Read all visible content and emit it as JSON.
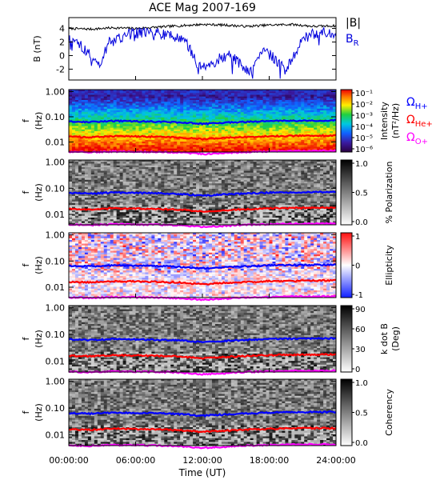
{
  "title": "ACE Mag 2007-169",
  "time_axis": {
    "label": "Time (UT)",
    "ticks": [
      "00:00:00",
      "06:00:00",
      "12:00:00",
      "18:00:00",
      "24:00:00"
    ]
  },
  "chart_data": [
    {
      "type": "line",
      "ylabel": "B (nT)",
      "ylim": [
        -3.6,
        5.6
      ],
      "yticks": [
        "4",
        "2",
        "0",
        "-2"
      ],
      "legend_placement": "right",
      "series": [
        {
          "name": "|B|",
          "color": "#000000",
          "x_hours": [
            0,
            2,
            4,
            6,
            8,
            10,
            12,
            14,
            16,
            18,
            20,
            22,
            24
          ],
          "values": [
            4.0,
            3.9,
            4.1,
            4.0,
            4.2,
            4.4,
            4.6,
            4.5,
            4.3,
            4.5,
            4.6,
            4.3,
            4.4
          ]
        },
        {
          "name": "B",
          "name_subscript": "R",
          "color": "#0000dd",
          "x_hours": [
            0,
            1,
            2,
            2.8,
            3.5,
            5,
            7,
            9,
            10.5,
            11.5,
            12.5,
            13.5,
            14.5,
            15.5,
            16.5,
            17.5,
            18.5,
            19.5,
            21,
            22.5,
            24
          ],
          "values": [
            2.5,
            1.5,
            0.2,
            -1.6,
            1.8,
            3.0,
            3.5,
            3.0,
            2.0,
            -1.0,
            -2.0,
            -0.5,
            0.2,
            -1.5,
            -2.5,
            1.0,
            -0.5,
            -2.3,
            2.5,
            3.5,
            3.0
          ]
        }
      ]
    },
    {
      "type": "heatmap",
      "ylabel": "f (Hz)",
      "yticks": [
        "1.00",
        "0.10",
        "0.01"
      ],
      "colorbar": {
        "label": "Intensity (nT²/Hz)",
        "ticks": [
          "10⁻¹",
          "10⁻²",
          "10⁻³",
          "10⁻⁴",
          "10⁻⁵",
          "10⁻⁶"
        ]
      },
      "legend_placement": "right",
      "series": [
        {
          "name": "Ω",
          "name_subscript": "H+",
          "color": "#0000ff",
          "freq_hz": [
            0.065,
            0.062,
            0.068,
            0.066,
            0.064,
            0.06,
            0.052,
            0.058,
            0.063,
            0.068,
            0.07,
            0.071,
            0.072
          ]
        },
        {
          "name": "Ω",
          "name_subscript": "He+",
          "color": "#ff0000",
          "freq_hz": [
            0.016,
            0.0155,
            0.017,
            0.0165,
            0.016,
            0.015,
            0.013,
            0.0145,
            0.0158,
            0.017,
            0.0175,
            0.0178,
            0.018
          ]
        },
        {
          "name": "Ω",
          "name_subscript": "O+",
          "color": "#ff00ff",
          "freq_hz": [
            0.0041,
            0.0039,
            0.0042,
            0.0041,
            0.004,
            0.0038,
            0.0033,
            0.0036,
            0.004,
            0.0042,
            0.0044,
            0.0044,
            0.0045
          ]
        }
      ]
    },
    {
      "type": "heatmap",
      "ylabel": "f (Hz)",
      "yticks": [
        "1.00",
        "0.10",
        "0.01"
      ],
      "colorbar": {
        "label": "% Polarization",
        "ticks": [
          "1.0",
          "0.5",
          "0.0"
        ]
      }
    },
    {
      "type": "heatmap",
      "ylabel": "f (Hz)",
      "yticks": [
        "1.00",
        "0.10",
        "0.01"
      ],
      "colorbar": {
        "label": "Ellipticity",
        "ticks": [
          "1",
          "0",
          "-1"
        ]
      }
    },
    {
      "type": "heatmap",
      "ylabel": "f (Hz)",
      "yticks": [
        "1.00",
        "0.10",
        "0.01"
      ],
      "colorbar": {
        "label": "k dot B (Deg)",
        "ticks": [
          "90",
          "60",
          "30",
          "0"
        ]
      }
    },
    {
      "type": "heatmap",
      "ylabel": "f (Hz)",
      "yticks": [
        "1.00",
        "0.10",
        "0.01"
      ],
      "colorbar": {
        "label": "Coherency",
        "ticks": [
          "1.0",
          "0.5",
          "0.0"
        ]
      }
    }
  ]
}
